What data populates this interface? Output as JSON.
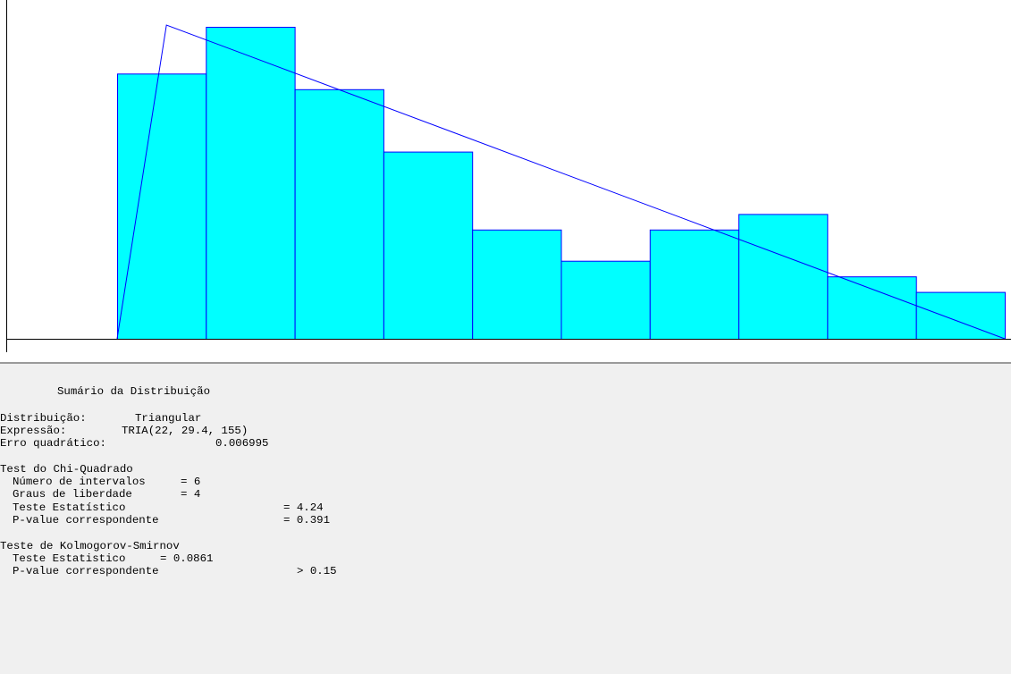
{
  "chart_data": {
    "type": "bar",
    "title": "",
    "xlabel": "",
    "ylabel": "",
    "values": [
      0.85,
      1.0,
      0.8,
      0.6,
      0.35,
      0.25,
      0.35,
      0.4,
      0.2,
      0.15
    ],
    "ylim": [
      0,
      1.02
    ],
    "xlim": [
      22,
      155
    ],
    "fitted_curve": {
      "distribution": "Triangular",
      "min": 22,
      "mode": 29.4,
      "max": 155
    },
    "grid": false,
    "colors": {
      "bar_fill": "#00ffff",
      "bar_stroke": "#0000ff",
      "curve": "#0000ff",
      "axis": "#000000"
    }
  },
  "summary": {
    "heading": "Sumário da Distribuição",
    "distribution_label": "Distribuição:",
    "distribution_value": "Triangular",
    "expression_label": "Expressão:",
    "expression_value": "TRIA(22, 29.4, 155)",
    "sq_error_label": "Erro quadrático:",
    "sq_error_value": "0.006995",
    "chi_title": "Test do Chi-Quadrado",
    "chi_intervals_label": "Número de intervalos",
    "chi_intervals_value": "= 6",
    "chi_df_label": "Graus de liberdade",
    "chi_df_value": "= 4",
    "chi_stat_label": "Teste Estatístico",
    "chi_stat_value": "= 4.24",
    "chi_p_label": "P-value correspondente",
    "chi_p_value": "= 0.391",
    "ks_title": "Teste de Kolmogorov-Smirnov",
    "ks_stat_label": "Teste Estatistico",
    "ks_stat_value": "= 0.0861",
    "ks_p_label": "P-value correspondente",
    "ks_p_value": "> 0.15"
  }
}
